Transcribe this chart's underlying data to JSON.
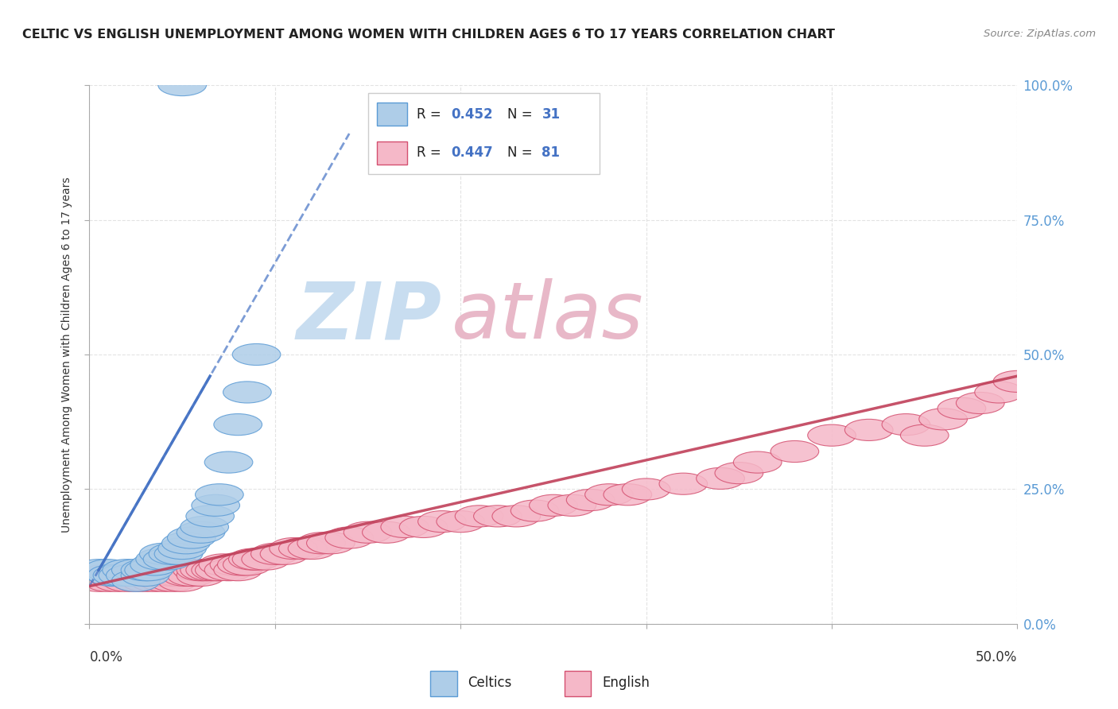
{
  "title": "CELTIC VS ENGLISH UNEMPLOYMENT AMONG WOMEN WITH CHILDREN AGES 6 TO 17 YEARS CORRELATION CHART",
  "source": "Source: ZipAtlas.com",
  "ylabel": "Unemployment Among Women with Children Ages 6 to 17 years",
  "ytick_labels_right": [
    "0.0%",
    "25.0%",
    "50.0%",
    "75.0%",
    "100.0%"
  ],
  "ytick_values": [
    0.0,
    0.25,
    0.5,
    0.75,
    1.0
  ],
  "xlim": [
    0.0,
    0.5
  ],
  "ylim": [
    0.0,
    1.0
  ],
  "celtics_color": "#aecde8",
  "celtics_edge_color": "#5b9bd5",
  "english_color": "#f5b8c8",
  "english_edge_color": "#d45070",
  "celtics_line_color": "#4472c4",
  "english_line_color": "#c0405a",
  "background_color": "#ffffff",
  "grid_color": "#dddddd",
  "title_color": "#222222",
  "source_color": "#888888",
  "right_tick_color": "#5b9bd5",
  "watermark_zip_color": "#c8ddf0",
  "watermark_atlas_color": "#e8b8c8",
  "celtics_x": [
    0.005,
    0.01,
    0.012,
    0.015,
    0.018,
    0.02,
    0.022,
    0.025,
    0.025,
    0.03,
    0.03,
    0.032,
    0.035,
    0.038,
    0.04,
    0.042,
    0.045,
    0.048,
    0.05,
    0.052,
    0.055,
    0.06,
    0.062,
    0.065,
    0.068,
    0.07,
    0.075,
    0.08,
    0.085,
    0.09,
    0.05
  ],
  "celtics_y": [
    0.1,
    0.1,
    0.09,
    0.09,
    0.09,
    0.1,
    0.09,
    0.1,
    0.08,
    0.09,
    0.1,
    0.1,
    0.11,
    0.12,
    0.13,
    0.12,
    0.13,
    0.13,
    0.14,
    0.15,
    0.16,
    0.17,
    0.18,
    0.2,
    0.22,
    0.24,
    0.3,
    0.37,
    0.43,
    0.5,
    1.0
  ],
  "english_x": [
    0.005,
    0.008,
    0.01,
    0.012,
    0.015,
    0.015,
    0.018,
    0.02,
    0.022,
    0.025,
    0.025,
    0.028,
    0.03,
    0.03,
    0.032,
    0.035,
    0.035,
    0.038,
    0.04,
    0.04,
    0.042,
    0.045,
    0.045,
    0.048,
    0.05,
    0.052,
    0.055,
    0.058,
    0.06,
    0.06,
    0.062,
    0.065,
    0.068,
    0.07,
    0.072,
    0.075,
    0.078,
    0.08,
    0.082,
    0.085,
    0.088,
    0.09,
    0.095,
    0.1,
    0.105,
    0.11,
    0.115,
    0.12,
    0.125,
    0.13,
    0.14,
    0.15,
    0.16,
    0.17,
    0.18,
    0.19,
    0.2,
    0.21,
    0.22,
    0.23,
    0.24,
    0.25,
    0.26,
    0.27,
    0.28,
    0.29,
    0.3,
    0.32,
    0.34,
    0.35,
    0.36,
    0.38,
    0.4,
    0.42,
    0.44,
    0.45,
    0.46,
    0.47,
    0.48,
    0.49,
    0.5
  ],
  "english_y": [
    0.08,
    0.09,
    0.08,
    0.09,
    0.08,
    0.09,
    0.09,
    0.08,
    0.09,
    0.08,
    0.09,
    0.09,
    0.08,
    0.09,
    0.09,
    0.08,
    0.09,
    0.09,
    0.08,
    0.09,
    0.09,
    0.08,
    0.09,
    0.09,
    0.08,
    0.09,
    0.09,
    0.1,
    0.09,
    0.1,
    0.1,
    0.1,
    0.1,
    0.1,
    0.11,
    0.1,
    0.11,
    0.1,
    0.11,
    0.11,
    0.12,
    0.12,
    0.12,
    0.13,
    0.13,
    0.14,
    0.14,
    0.14,
    0.15,
    0.15,
    0.16,
    0.17,
    0.17,
    0.18,
    0.18,
    0.19,
    0.19,
    0.2,
    0.2,
    0.2,
    0.21,
    0.22,
    0.22,
    0.23,
    0.24,
    0.24,
    0.25,
    0.26,
    0.27,
    0.28,
    0.3,
    0.32,
    0.35,
    0.36,
    0.37,
    0.35,
    0.38,
    0.4,
    0.41,
    0.43,
    0.45
  ],
  "legend_items": [
    {
      "label_r": "R = ",
      "val_r": "0.452",
      "label_n": "N = ",
      "val_n": "31"
    },
    {
      "label_r": "R = ",
      "val_r": "0.447",
      "label_n": "N = ",
      "val_n": "81"
    }
  ]
}
